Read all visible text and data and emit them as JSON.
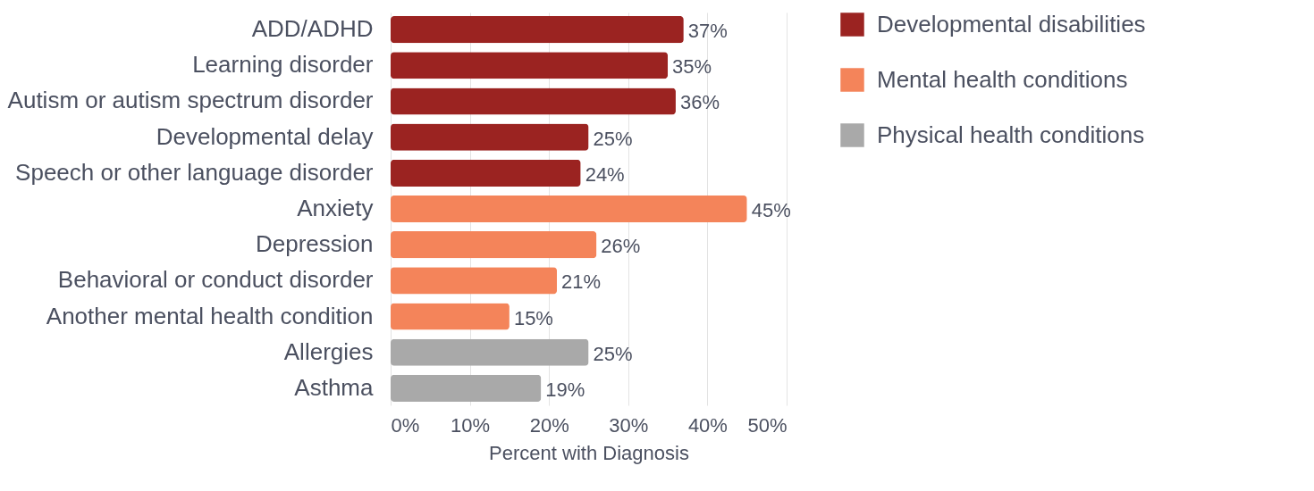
{
  "chart_data": {
    "type": "bar",
    "orientation": "horizontal",
    "xlabel": "Percent with Diagnosis",
    "categories": [
      "ADD/ADHD",
      "Learning disorder",
      "Autism or autism spectrum disorder",
      "Developmental delay",
      "Speech or other language disorder",
      "Anxiety",
      "Depression",
      "Behavioral or conduct disorder",
      "Another mental health condition",
      "Allergies",
      "Asthma"
    ],
    "series": [
      {
        "name": "Developmental disabilities",
        "color": "#9b2321",
        "values": [
          37,
          35,
          36,
          25,
          24,
          null,
          null,
          null,
          null,
          null,
          null
        ],
        "value_labels": [
          "37%",
          "35%",
          "36%",
          "25%",
          "24%",
          null,
          null,
          null,
          null,
          null,
          null
        ]
      },
      {
        "name": "Mental health conditions",
        "color": "#f4845a",
        "values": [
          null,
          null,
          null,
          null,
          null,
          45,
          26,
          21,
          15,
          null,
          null
        ],
        "value_labels": [
          null,
          null,
          null,
          null,
          null,
          "45%",
          "26%",
          "21%",
          "15%",
          null,
          null
        ]
      },
      {
        "name": "Physical health conditions",
        "color": "#a9a9a9",
        "values": [
          null,
          null,
          null,
          null,
          null,
          null,
          null,
          null,
          null,
          25,
          19
        ],
        "value_labels": [
          null,
          null,
          null,
          null,
          null,
          null,
          null,
          null,
          null,
          "25%",
          "19%"
        ]
      }
    ],
    "xlim": [
      0,
      50
    ],
    "xticks": [
      {
        "value": 0,
        "label": "0%"
      },
      {
        "value": 10,
        "label": "10%"
      },
      {
        "value": 20,
        "label": "20%"
      },
      {
        "value": 30,
        "label": "30%"
      },
      {
        "value": 40,
        "label": "40%"
      },
      {
        "value": 50,
        "label": "50%"
      }
    ],
    "grid": "x",
    "legend": "right"
  }
}
